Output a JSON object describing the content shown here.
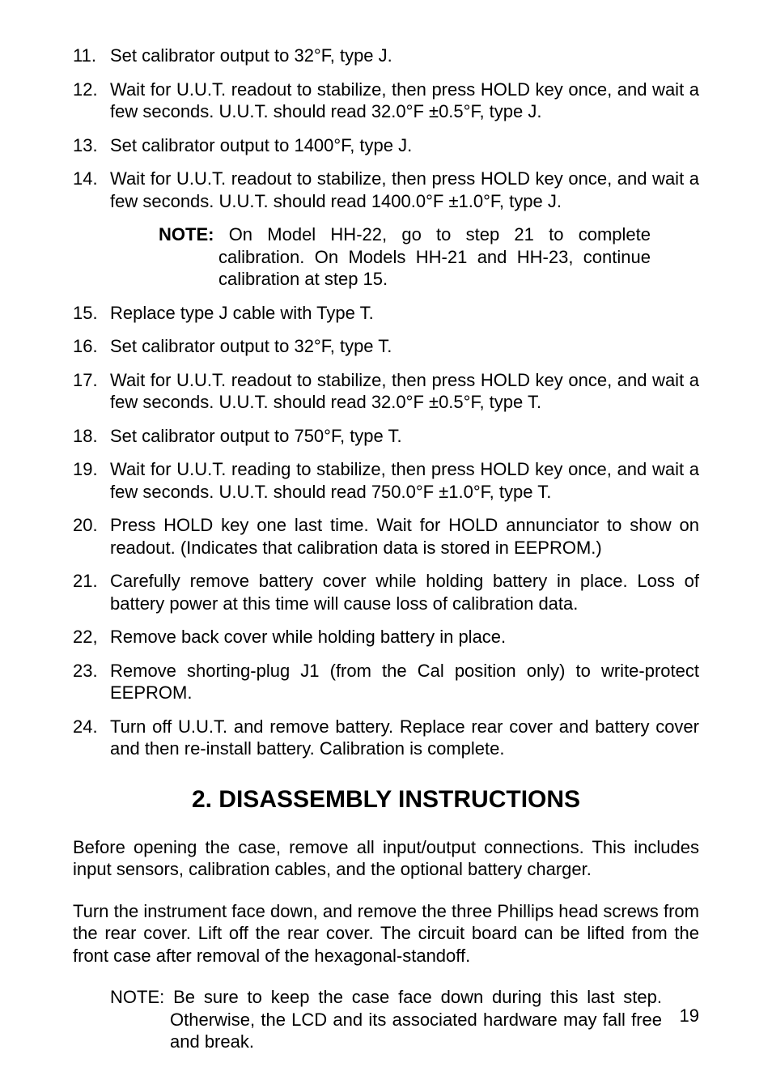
{
  "typography": {
    "body_fontsize_pt": 16,
    "title_fontsize_pt": 22,
    "font_family": "Arial, Helvetica, sans-serif",
    "text_color": "#000000",
    "background_color": "#ffffff"
  },
  "steps": [
    {
      "num": "11.",
      "text": "Set calibrator output to 32°F, type J."
    },
    {
      "num": "12.",
      "text": "Wait for U.U.T. readout to stabilize, then press HOLD key once, and wait a few seconds. U.U.T. should read 32.0°F ±0.5°F, type J."
    },
    {
      "num": "13.",
      "text": "Set calibrator output to 1400°F, type J."
    },
    {
      "num": "14.",
      "text": "Wait for U.U.T. readout to stabilize, then press HOLD key once, and wait a few seconds. U.U.T. should read 1400.0°F ±1.0°F, type J."
    }
  ],
  "note1": {
    "label": "NOTE:",
    "text": "On Model HH-22, go to step 21 to complete calibration.  On Models HH-21 and HH-23, continue calibration at step 15."
  },
  "steps2": [
    {
      "num": "15.",
      "text": "Replace type J cable with Type T."
    },
    {
      "num": "16.",
      "text": "Set calibrator output to 32°F, type T."
    },
    {
      "num": "17.",
      "text": "Wait for U.U.T. readout to stabilize, then press HOLD key once, and wait a few seconds. U.U.T. should read 32.0°F ±0.5°F, type T."
    },
    {
      "num": "18.",
      "text": "Set calibrator output to 750°F, type T."
    },
    {
      "num": "19.",
      "text": "Wait for U.U.T. reading to stabilize, then press HOLD key once, and wait a few seconds. U.U.T. should read 750.0°F ±1.0°F, type T."
    },
    {
      "num": "20.",
      "text": "Press HOLD key one last time. Wait for HOLD annunciator to show on readout. (Indicates that calibration data is stored in EEPROM.)"
    },
    {
      "num": "21.",
      "text": "Carefully remove battery cover while holding battery in place. Loss of battery power at this time will cause loss of calibration data."
    },
    {
      "num": "22,",
      "text": "Remove back cover while holding battery in place."
    },
    {
      "num": "23.",
      "text": "Remove shorting-plug J1 (from the Cal position only) to write-protect EEPROM."
    },
    {
      "num": "24.",
      "text": "Turn off U.U.T. and remove battery. Replace rear cover and battery cover and then re-install battery. Calibration is complete."
    }
  ],
  "section2": {
    "title": "2. DISASSEMBLY INSTRUCTIONS",
    "para1": "Before opening the case, remove all input/output connections. This includes input sensors, calibration cables, and the optional battery charger.",
    "para2": "Turn the instrument face down, and remove the three Phillips head screws from the rear cover. Lift off the rear cover. The circuit board can be lifted from the front case after removal of the hexagonal-standoff."
  },
  "note2": {
    "label": "NOTE:",
    "text": "Be sure to keep the case face down during this last step. Otherwise, the LCD and its associated hardware may fall free and break."
  },
  "page_number": "19"
}
